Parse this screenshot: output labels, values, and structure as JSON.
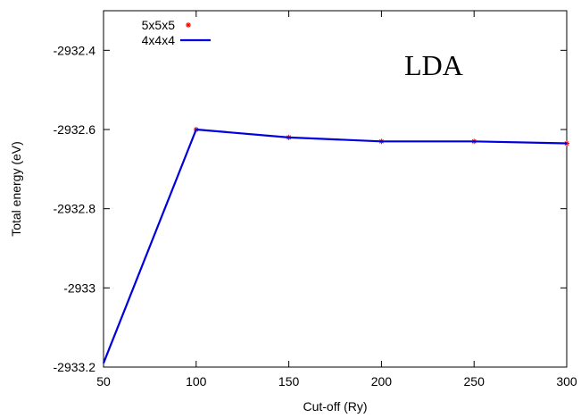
{
  "chart_data": {
    "type": "line",
    "title": "",
    "xlabel": "Cut-off (Ry)",
    "ylabel": "Total energy (eV)",
    "annotation": "LDA",
    "xlim": [
      50,
      300
    ],
    "ylim": [
      -2933.2,
      -2932.3
    ],
    "x_ticks": [
      50,
      100,
      150,
      200,
      250,
      300
    ],
    "x_tick_labels": [
      "50",
      "100",
      "150",
      "200",
      "250",
      "300"
    ],
    "y_ticks": [
      -2933.2,
      -2933.0,
      -2932.8,
      -2932.6,
      -2932.4
    ],
    "y_tick_labels": [
      "-2933.2",
      "-2933",
      "-2932.8",
      "-2932.6",
      "-2932.4"
    ],
    "grid": false,
    "legend_position": "top-left",
    "series": [
      {
        "name": "5x5x5",
        "style": "points",
        "marker": "*",
        "color": "#ff0000",
        "x": [
          100,
          150,
          200,
          250,
          300
        ],
        "y": [
          -2932.6,
          -2932.62,
          -2932.63,
          -2932.63,
          -2932.635
        ]
      },
      {
        "name": "4x4x4",
        "style": "line",
        "color": "#0000dd",
        "x": [
          50,
          100,
          150,
          200,
          250,
          300
        ],
        "y": [
          -2933.19,
          -2932.6,
          -2932.62,
          -2932.63,
          -2932.63,
          -2932.635
        ]
      }
    ]
  }
}
